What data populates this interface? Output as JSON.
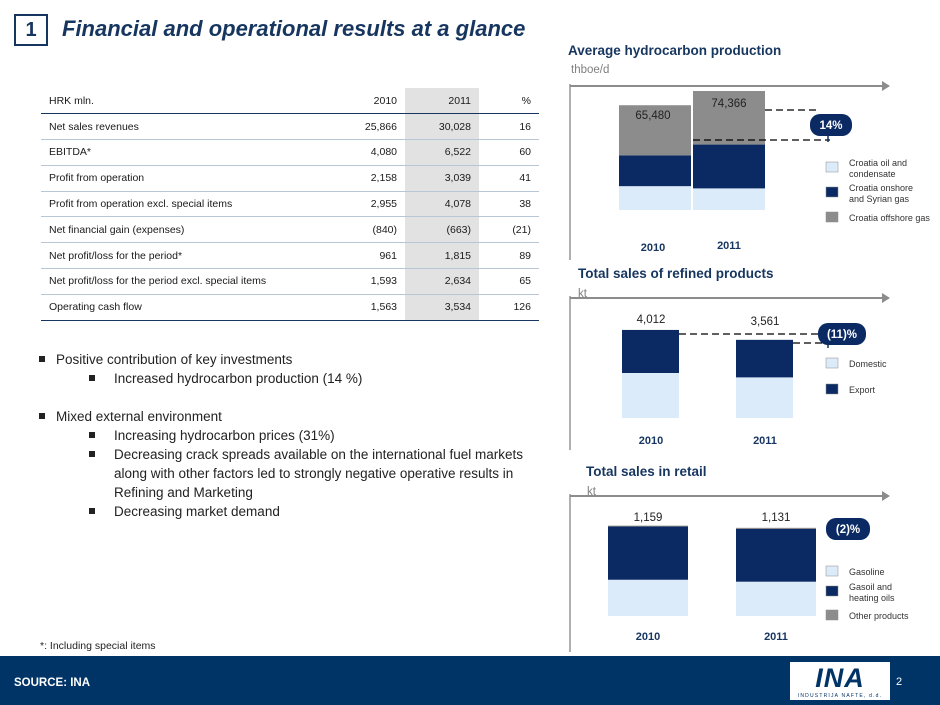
{
  "slide": {
    "number": "1",
    "title": "Financial and operational results at a glance",
    "footnote": "*: Including special items",
    "source": "SOURCE: INA",
    "page_number": "2"
  },
  "logo": {
    "text": "INA",
    "subtext": "INDUSTRIJA NAFTE, d.d."
  },
  "colors": {
    "navy": "#0b2a63",
    "grey": "#8c8c8c",
    "light_blue": "#dcebfa",
    "footer_blue": "#003366",
    "title_blue": "#16355f"
  },
  "table": {
    "headers": [
      "HRK mln.",
      "2010",
      "2011",
      "%"
    ],
    "rows": [
      [
        "Net sales revenues",
        "25,866",
        "30,028",
        "16"
      ],
      [
        "EBITDA*",
        "4,080",
        "6,522",
        "60"
      ],
      [
        "Profit from operation",
        "2,158",
        "3,039",
        "41"
      ],
      [
        "Profit from operation excl. special items",
        "2,955",
        "4,078",
        "38"
      ],
      [
        "Net financial gain (expenses)",
        "(840)",
        "(663)",
        "(21)"
      ],
      [
        "Net profit/loss for the period*",
        "961",
        "1,815",
        "89"
      ],
      [
        "Net profit/loss for the period excl. special items",
        "1,593",
        "2,634",
        "65"
      ],
      [
        "Operating cash flow",
        "1,563",
        "3,534",
        "126"
      ]
    ]
  },
  "bullets": {
    "b1": "Positive contribution of key investments",
    "b1_1": "Increased hydrocarbon production (14 %)",
    "b2": "Mixed external environment",
    "b2_1": "Increasing hydrocarbon prices (31%)",
    "b2_2": "Decreasing crack spreads available on the  international fuel markets along with other factors led to strongly negative operative results in Refining and Marketing",
    "b2_3": "Decreasing market demand"
  },
  "chart_data": [
    {
      "type": "bar",
      "stacked": true,
      "title": "Average hydrocarbon production",
      "unit": "thboe/d",
      "categories": [
        "2010",
        "2011"
      ],
      "totals": [
        "65,480",
        "74,366"
      ],
      "total_values": [
        65480,
        74366
      ],
      "change_label": "14%",
      "change_direction": "up",
      "series": [
        {
          "name": "Croatia oil and condensate",
          "color": "#dcebfa",
          "values": [
            14900,
            13500
          ]
        },
        {
          "name": "Croatia onshore and Syrian gas",
          "color": "#0b2a63",
          "values": [
            19200,
            27400
          ]
        },
        {
          "name": "Croatia offshore gas",
          "color": "#8c8c8c",
          "values": [
            31380,
            33466
          ]
        }
      ]
    },
    {
      "type": "bar",
      "stacked": true,
      "title": "Total sales of refined products",
      "unit": "kt",
      "categories": [
        "2010",
        "2011"
      ],
      "totals": [
        "4,012",
        "3,561"
      ],
      "total_values": [
        4012,
        3561
      ],
      "change_label": "(11)%",
      "change_direction": "down",
      "series": [
        {
          "name": "Domestic",
          "color": "#dcebfa",
          "values": [
            2050,
            1850
          ]
        },
        {
          "name": "Export",
          "color": "#0b2a63",
          "values": [
            1962,
            1711
          ]
        }
      ]
    },
    {
      "type": "bar",
      "stacked": true,
      "title": "Total sales in retail",
      "unit": "kt",
      "categories": [
        "2010",
        "2011"
      ],
      "totals": [
        "1,159",
        "1,131"
      ],
      "total_values": [
        1159,
        1131
      ],
      "change_label": "(2)%",
      "change_direction": "down",
      "series": [
        {
          "name": "Gasoline",
          "color": "#dcebfa",
          "values": [
            465,
            440
          ]
        },
        {
          "name": "Gasoil and heating oils",
          "color": "#0b2a63",
          "values": [
            684,
            676
          ]
        },
        {
          "name": "Other products",
          "color": "#8c8c8c",
          "values": [
            10,
            15
          ]
        }
      ]
    }
  ]
}
